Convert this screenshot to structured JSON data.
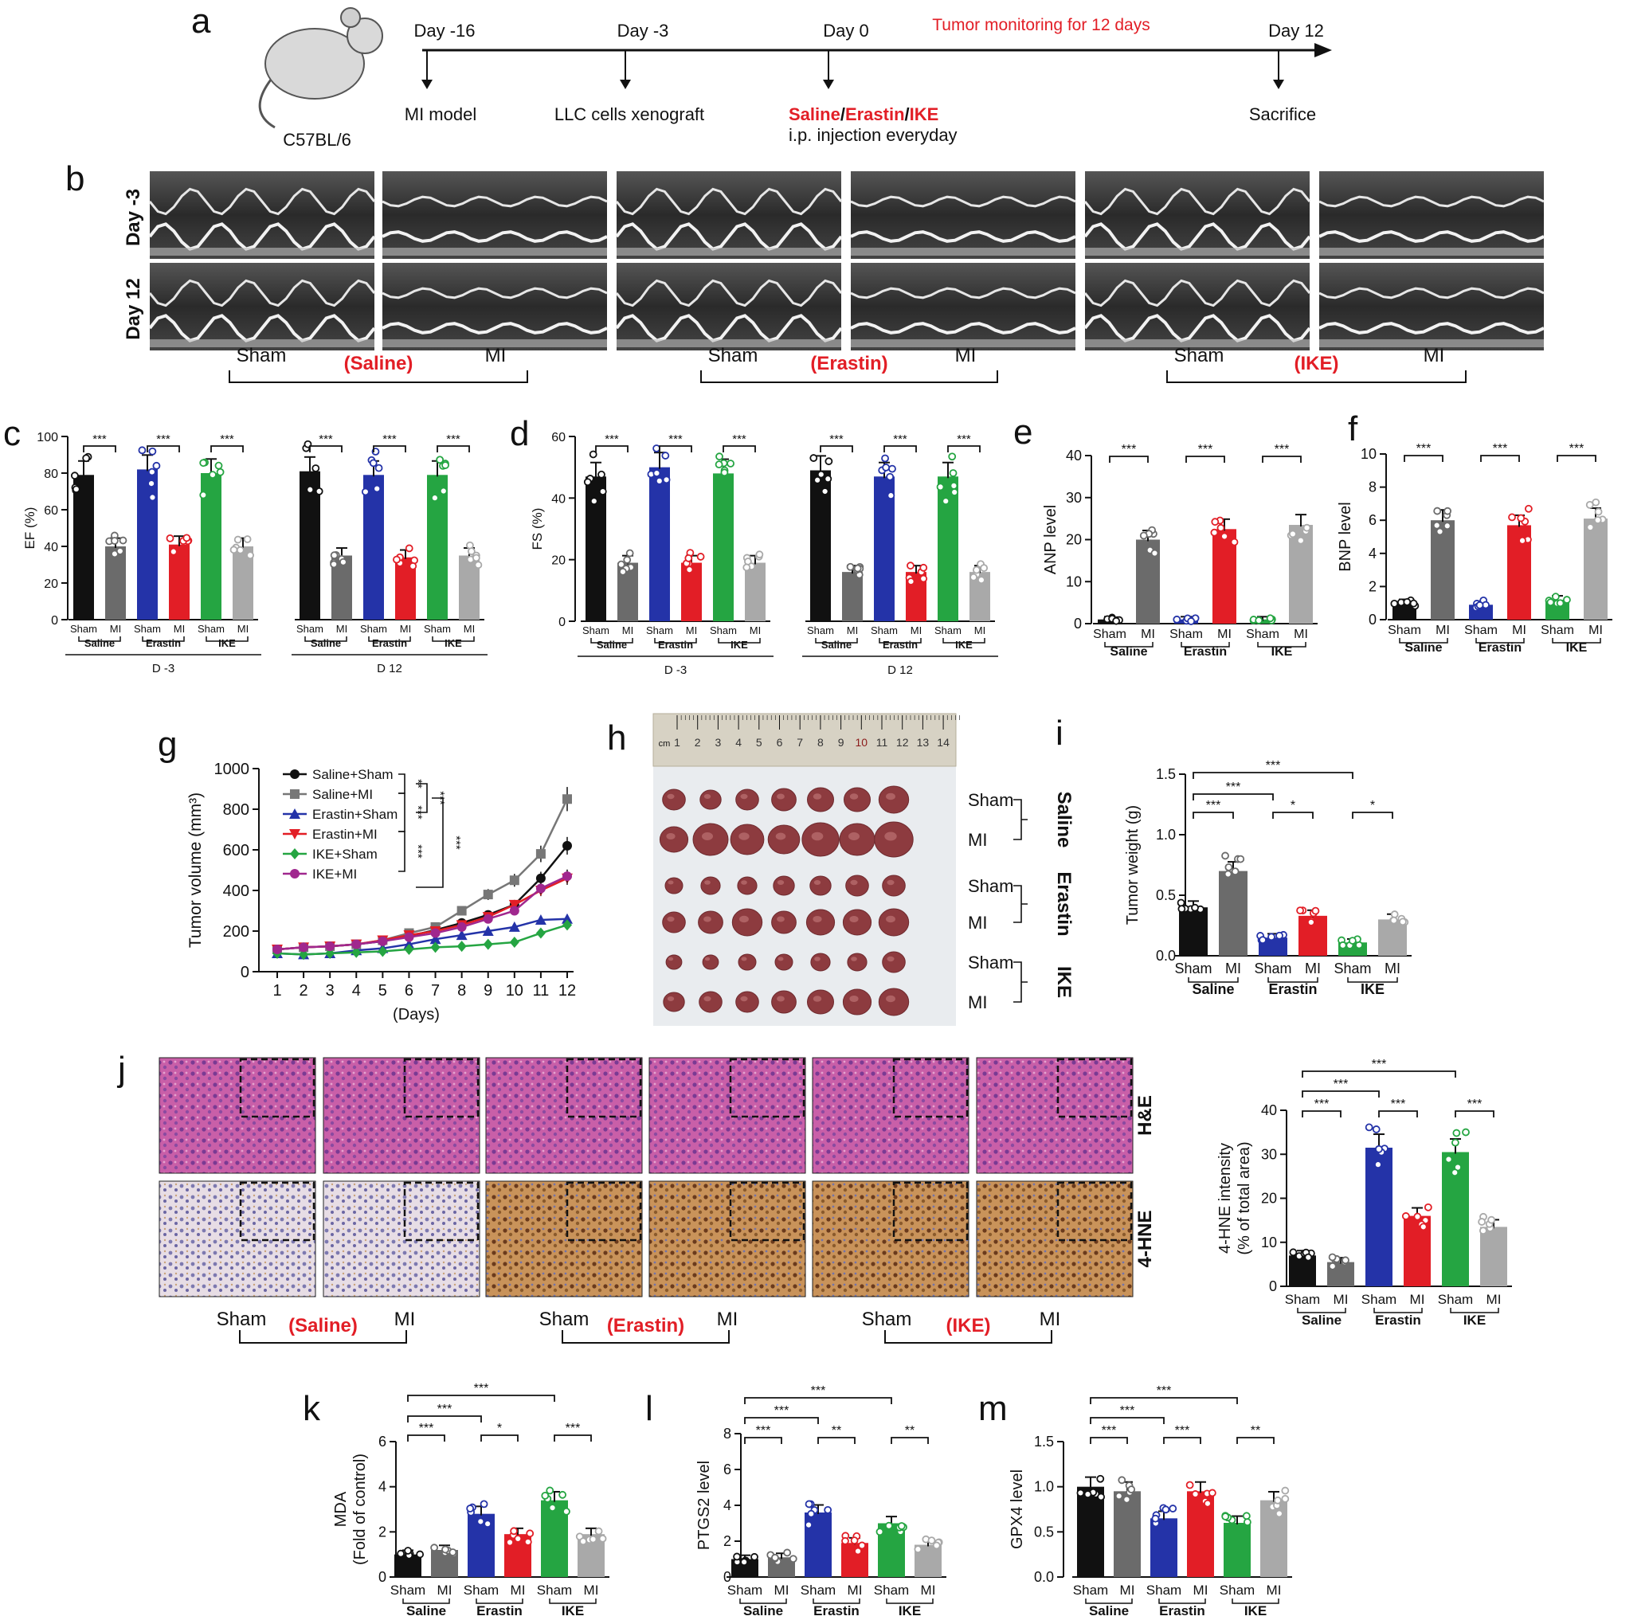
{
  "panel_letters": [
    "a",
    "b",
    "c",
    "d",
    "e",
    "f",
    "g",
    "h",
    "i",
    "j",
    "k",
    "l",
    "m"
  ],
  "colors": {
    "saline_sham": "#111111",
    "saline_mi": "#6b6b6b",
    "erastin_sham": "#2433a8",
    "erastin_mi": "#e21e26",
    "ike_sham": "#25a542",
    "ike_mi": "#a9a9a9",
    "red_text": "#e21e26"
  },
  "timeline": {
    "mouse_strain": "C57BL/6",
    "monitoring_label": "Tumor monitoring for 12 days",
    "events": [
      {
        "day": "Day -16",
        "event": "MI model"
      },
      {
        "day": "Day -3",
        "event": "LLC cells xenograft"
      },
      {
        "day": "Day 0",
        "event_parts": [
          "Saline",
          "/",
          "Erastin",
          "/",
          "IKE"
        ],
        "event_line2": "i.p. injection everyday"
      },
      {
        "day": "Day 12",
        "event": "Sacrifice"
      }
    ]
  },
  "echo": {
    "row_labels": [
      "Day -3",
      "Day 12"
    ],
    "groups": [
      {
        "name": "(Saline)",
        "left": "Sham",
        "right": "MI"
      },
      {
        "name": "(Erastin)",
        "left": "Sham",
        "right": "MI"
      },
      {
        "name": "(IKE)",
        "left": "Sham",
        "right": "MI"
      }
    ]
  },
  "group_labels": {
    "sham": "Sham",
    "mi": "MI",
    "saline": "Saline",
    "erastin": "Erastin",
    "ike": "IKE"
  },
  "stars": {
    "one": "*",
    "two": "**",
    "three": "***"
  },
  "histology": {
    "stains": [
      "H&E",
      "4-HNE"
    ],
    "groups": [
      "(Saline)",
      "(Erastin)",
      "(IKE)"
    ]
  },
  "tumor_photo": {
    "row_labels": [
      "Sham",
      "MI",
      "Sham",
      "MI",
      "Sham",
      "MI"
    ],
    "group_labels": [
      "Saline",
      "Erastin",
      "IKE"
    ],
    "ruler_unit": "cm",
    "ruler_ticks": [
      "1",
      "2",
      "3",
      "4",
      "5",
      "6",
      "7",
      "8",
      "9",
      "10",
      "11",
      "12",
      "13",
      "14"
    ]
  },
  "chart_data": [
    {
      "panel": "c",
      "type": "bar",
      "ylabel": "EF (%)",
      "ylim": [
        0,
        100
      ],
      "yticks": [
        0,
        20,
        40,
        60,
        80,
        100
      ],
      "timepoints": [
        "D -3",
        "D 12"
      ],
      "series": [
        {
          "timepoint": "D -3",
          "values": [
            79,
            40,
            82,
            41,
            80,
            40
          ]
        },
        {
          "timepoint": "D 12",
          "values": [
            81,
            35,
            79,
            34,
            79,
            35
          ]
        }
      ]
    },
    {
      "panel": "d",
      "type": "bar",
      "ylabel": "FS (%)",
      "ylim": [
        0,
        60
      ],
      "yticks": [
        0,
        20,
        40,
        60
      ],
      "timepoints": [
        "D -3",
        "D 12"
      ],
      "series": [
        {
          "timepoint": "D -3",
          "values": [
            47,
            19,
            50,
            19,
            48,
            19
          ]
        },
        {
          "timepoint": "D 12",
          "values": [
            49,
            16,
            47,
            16,
            47,
            16
          ]
        }
      ]
    },
    {
      "panel": "e",
      "type": "bar",
      "ylabel": "ANP level",
      "ylim": [
        0,
        40
      ],
      "yticks": [
        0,
        10,
        20,
        30,
        40
      ],
      "values": [
        1,
        20,
        1,
        22.5,
        1,
        23.5
      ]
    },
    {
      "panel": "f",
      "type": "bar",
      "ylabel": "BNP level",
      "ylim": [
        0,
        10
      ],
      "yticks": [
        0,
        2,
        4,
        6,
        8,
        10
      ],
      "values": [
        1,
        6,
        0.9,
        5.7,
        1.2,
        6.1
      ]
    },
    {
      "panel": "g",
      "type": "line",
      "xlabel": "(Days)",
      "ylabel": "Tumor volume (mm³)",
      "ylim": [
        0,
        1000
      ],
      "yticks": [
        0,
        200,
        400,
        600,
        800,
        1000
      ],
      "x": [
        1,
        2,
        3,
        4,
        5,
        6,
        7,
        8,
        9,
        10,
        11,
        12
      ],
      "series": [
        {
          "name": "Saline+Sham",
          "marker": "circle",
          "values": [
            110,
            120,
            125,
            135,
            150,
            175,
            205,
            240,
            280,
            330,
            460,
            620
          ]
        },
        {
          "name": "Saline+MI",
          "marker": "square",
          "values": [
            110,
            120,
            125,
            135,
            155,
            190,
            220,
            300,
            380,
            450,
            580,
            850
          ]
        },
        {
          "name": "Erastin+Sham",
          "marker": "triangle",
          "values": [
            90,
            85,
            90,
            105,
            115,
            135,
            160,
            180,
            200,
            220,
            255,
            260
          ]
        },
        {
          "name": "Erastin+MI",
          "marker": "invtriangle",
          "values": [
            110,
            120,
            125,
            135,
            155,
            180,
            200,
            230,
            270,
            330,
            400,
            460
          ]
        },
        {
          "name": "IKE+Sham",
          "marker": "diamond",
          "values": [
            90,
            85,
            90,
            95,
            100,
            110,
            120,
            125,
            135,
            145,
            190,
            230
          ]
        },
        {
          "name": "IKE+MI",
          "marker": "circle",
          "values": [
            110,
            120,
            125,
            135,
            150,
            170,
            190,
            220,
            260,
            300,
            410,
            470
          ]
        }
      ]
    },
    {
      "panel": "i",
      "type": "bar",
      "ylabel": "Tumor weight (g)",
      "ylim": [
        0,
        1.5
      ],
      "yticks": [
        "0.0",
        "0.5",
        "1.0",
        "1.5"
      ],
      "values": [
        0.4,
        0.7,
        0.15,
        0.33,
        0.11,
        0.3
      ]
    },
    {
      "panel": "j",
      "type": "bar",
      "ylabel": "4-HNE intensity",
      "ylabel2": "(% of total area)",
      "ylim": [
        0,
        40
      ],
      "yticks": [
        0,
        10,
        20,
        30,
        40
      ],
      "values": [
        7,
        5.5,
        31.5,
        16,
        30.5,
        13.5
      ]
    },
    {
      "panel": "k",
      "type": "bar",
      "ylabel": "MDA",
      "ylabel2": "(Fold of control)",
      "ylim": [
        0,
        6
      ],
      "yticks": [
        0,
        2,
        4,
        6
      ],
      "values": [
        1,
        1.2,
        2.8,
        1.9,
        3.4,
        1.9
      ]
    },
    {
      "panel": "l",
      "type": "bar",
      "ylabel": "PTGS2 level",
      "ylim": [
        0,
        8
      ],
      "yticks": [
        0,
        2,
        4,
        6,
        8
      ],
      "values": [
        1,
        1.1,
        3.6,
        1.9,
        3,
        1.8
      ]
    },
    {
      "panel": "m",
      "type": "bar",
      "ylabel": "GPX4 level",
      "ylim": [
        0,
        1.5
      ],
      "yticks": [
        "0.0",
        "0.5",
        "1.0",
        "1.5"
      ],
      "values": [
        1,
        0.95,
        0.65,
        0.95,
        0.6,
        0.85
      ]
    }
  ]
}
